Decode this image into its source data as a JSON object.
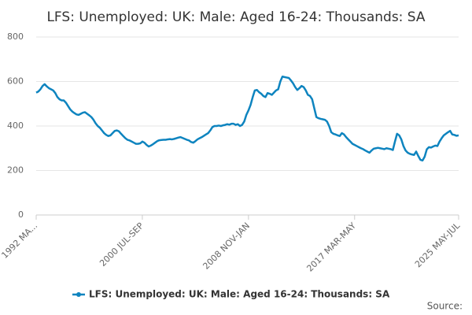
{
  "chart_data": {
    "type": "line",
    "title": "LFS: Unemployed: UK: Male: Aged 16-24: Thousands: SA",
    "source": "Source:",
    "categories": [
      "1992 MA...",
      null,
      null,
      null,
      null,
      null,
      null,
      null,
      null,
      null,
      null,
      null,
      null,
      null,
      null,
      null,
      null,
      null,
      null,
      null,
      null,
      null,
      null,
      null,
      null,
      null,
      null,
      null,
      null,
      null,
      null,
      null,
      null,
      null,
      null,
      null,
      null,
      null,
      null,
      null,
      null,
      null,
      null,
      null,
      null,
      null,
      null,
      null,
      null,
      null,
      "2000 JUL-SEP",
      null,
      null,
      null,
      null,
      null,
      null,
      null,
      null,
      null,
      null,
      null,
      null,
      null,
      null,
      null,
      null,
      null,
      null,
      null,
      null,
      null,
      null,
      null,
      null,
      null,
      null,
      null,
      null,
      null,
      null,
      null,
      null,
      null,
      null,
      null,
      null,
      null,
      null,
      null,
      null,
      null,
      null,
      null,
      null,
      null,
      null,
      null,
      null,
      null,
      "2008 NOV-JAN",
      null,
      null,
      null,
      null,
      null,
      null,
      null,
      null,
      null,
      null,
      null,
      null,
      null,
      null,
      null,
      null,
      null,
      null,
      null,
      null,
      null,
      null,
      null,
      null,
      null,
      null,
      null,
      null,
      null,
      null,
      null,
      null,
      null,
      null,
      null,
      null,
      null,
      null,
      null,
      null,
      null,
      null,
      null,
      null,
      null,
      null,
      null,
      null,
      null,
      "2017 MAR-MAY",
      null,
      null,
      null,
      null,
      null,
      null,
      null,
      null,
      null,
      null,
      null,
      null,
      null,
      null,
      null,
      null,
      null,
      null,
      null,
      null,
      null,
      null,
      null,
      null,
      null,
      null,
      null,
      null,
      null,
      null,
      null,
      null,
      null,
      null,
      null,
      null,
      null,
      null,
      null,
      null,
      null,
      null,
      null,
      null,
      null,
      null,
      null,
      null,
      "2025 MAY-JUL"
    ],
    "series": [
      {
        "name": "LFS: Unemployed: UK: Male: Aged 16-24: Thousands: SA",
        "color": "#0e84bf",
        "values": [
          550,
          555,
          565,
          580,
          588,
          578,
          570,
          565,
          560,
          548,
          530,
          520,
          515,
          515,
          505,
          490,
          475,
          465,
          458,
          452,
          450,
          455,
          460,
          462,
          455,
          448,
          440,
          428,
          412,
          400,
          392,
          380,
          368,
          360,
          355,
          358,
          368,
          378,
          380,
          376,
          365,
          355,
          345,
          338,
          335,
          330,
          325,
          320,
          320,
          322,
          330,
          325,
          315,
          308,
          312,
          318,
          325,
          332,
          336,
          337,
          338,
          338,
          340,
          341,
          340,
          342,
          345,
          348,
          350,
          346,
          342,
          338,
          335,
          328,
          325,
          332,
          340,
          345,
          350,
          356,
          362,
          368,
          380,
          395,
          400,
          400,
          402,
          400,
          403,
          405,
          408,
          406,
          410,
          410,
          405,
          408,
          400,
          405,
          420,
          450,
          470,
          495,
          530,
          560,
          562,
          552,
          545,
          535,
          530,
          548,
          545,
          540,
          550,
          560,
          565,
          600,
          622,
          620,
          618,
          616,
          605,
          592,
          575,
          562,
          570,
          580,
          575,
          560,
          540,
          535,
          520,
          480,
          440,
          435,
          432,
          430,
          428,
          420,
          400,
          372,
          365,
          362,
          358,
          355,
          368,
          362,
          350,
          340,
          330,
          320,
          315,
          310,
          305,
          300,
          296,
          290,
          285,
          280,
          290,
          298,
          300,
          302,
          300,
          298,
          296,
          300,
          298,
          296,
          292,
          330,
          365,
          358,
          340,
          310,
          290,
          280,
          275,
          272,
          270,
          285,
          265,
          248,
          245,
          262,
          295,
          305,
          303,
          308,
          312,
          310,
          330,
          345,
          358,
          365,
          372,
          378,
          362,
          360,
          356,
          358
        ]
      }
    ],
    "ylim": [
      0,
      800
    ],
    "yticks": [
      0,
      200,
      400,
      600,
      800
    ],
    "grid": true
  }
}
